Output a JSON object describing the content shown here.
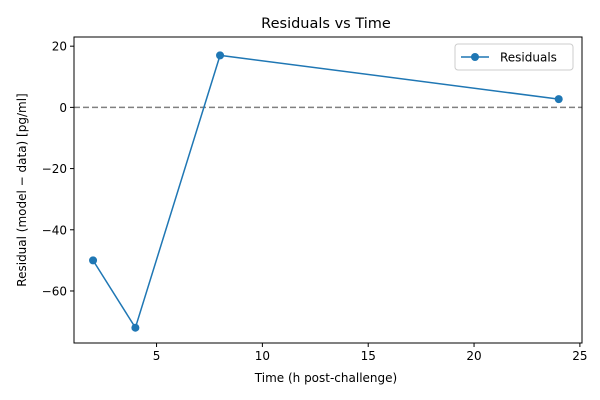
{
  "chart_data": {
    "type": "line",
    "title": "Residuals vs Time",
    "xlabel": "Time (h post-challenge)",
    "ylabel": "Residual (model − data) [pg/ml]",
    "xlim": [
      1.1,
      25.1
    ],
    "ylim": [
      -77,
      23
    ],
    "xticks": [
      5,
      10,
      15,
      20,
      25
    ],
    "xtick_labels": [
      "5",
      "10",
      "15",
      "20",
      "25"
    ],
    "yticks": [
      -60,
      -40,
      -20,
      0,
      20
    ],
    "ytick_labels": [
      "−60",
      "−40",
      "−20",
      "0",
      "20"
    ],
    "grid": false,
    "legend_position": "top-right",
    "reference_line": {
      "y": 0,
      "style": "dashed",
      "color": "#808080"
    },
    "series": [
      {
        "name": "Residuals",
        "color": "#1f77b4",
        "marker": "circle",
        "x": [
          2,
          4,
          8,
          24
        ],
        "y": [
          -50,
          -72,
          17,
          2.7
        ]
      }
    ]
  }
}
